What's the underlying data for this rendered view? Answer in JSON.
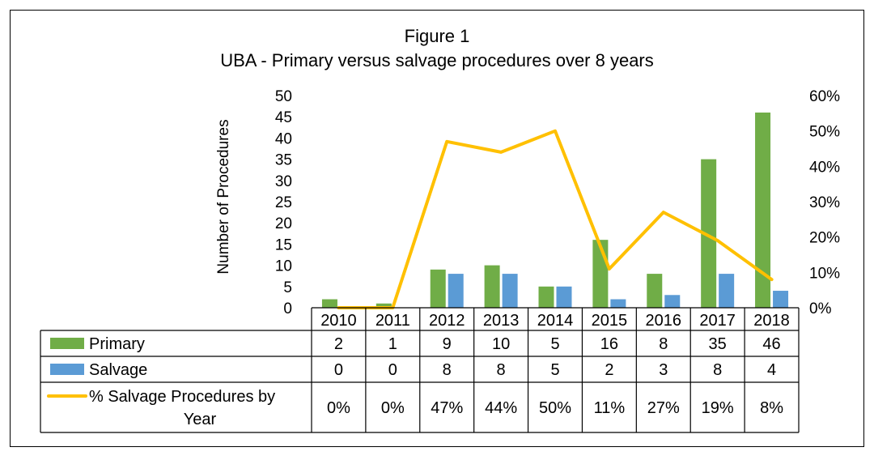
{
  "chart_data": {
    "type": "bar",
    "title": "Figure 1",
    "subtitle": "UBA - Primary versus salvage procedures over 8 years",
    "ylabel": "Number of Procedures",
    "ylim": [
      0,
      50
    ],
    "yticks": [
      "0",
      "5",
      "10",
      "15",
      "20",
      "25",
      "30",
      "35",
      "40",
      "45",
      "50"
    ],
    "y2lim": [
      0,
      0.6
    ],
    "y2ticks": [
      "0%",
      "10%",
      "20%",
      "30%",
      "40%",
      "50%",
      "60%"
    ],
    "categories": [
      "2010",
      "2011",
      "2012",
      "2013",
      "2014",
      "2015",
      "2016",
      "2017",
      "2018"
    ],
    "series": [
      {
        "name": "Primary",
        "type": "bar",
        "color": "#70ad47",
        "values": [
          2,
          1,
          9,
          10,
          5,
          16,
          8,
          35,
          46
        ]
      },
      {
        "name": "Salvage",
        "type": "bar",
        "color": "#5b9bd5",
        "values": [
          0,
          0,
          8,
          8,
          5,
          2,
          3,
          8,
          4
        ]
      },
      {
        "name": "% Salvage Procedures by Year",
        "type": "line",
        "axis": "right",
        "color": "#ffc000",
        "values": [
          0,
          0,
          0.47,
          0.44,
          0.5,
          0.11,
          0.27,
          0.19,
          0.08
        ]
      }
    ],
    "table_rows": [
      {
        "label": "Primary",
        "cells": [
          "2",
          "1",
          "9",
          "10",
          "5",
          "16",
          "8",
          "35",
          "46"
        ]
      },
      {
        "label": "Salvage",
        "cells": [
          "0",
          "0",
          "8",
          "8",
          "5",
          "2",
          "3",
          "8",
          "4"
        ]
      },
      {
        "label_lines": [
          "% Salvage Procedures by",
          "Year"
        ],
        "cells": [
          "0%",
          "0%",
          "47%",
          "44%",
          "50%",
          "11%",
          "27%",
          "19%",
          "8%"
        ]
      }
    ],
    "grid": false,
    "legend": "data-table"
  }
}
